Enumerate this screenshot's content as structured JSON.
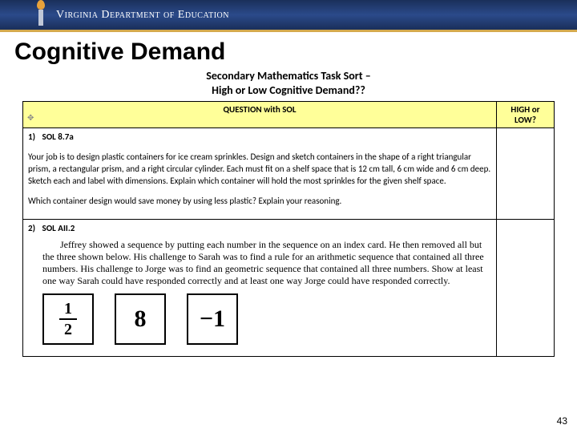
{
  "banner": {
    "org": "Virginia Department of Education",
    "bg_gradient": [
      "#1a2f5a",
      "#2b4a8a",
      "#1a2f5a"
    ],
    "accent_bar": "#d4a94e",
    "text_color": "#ffffff"
  },
  "slide": {
    "title": "Cognitive Demand",
    "page_number": "43"
  },
  "worksheet": {
    "title_line1": "Secondary Mathematics Task Sort –",
    "title_line2": "High or Low Cognitive Demand??",
    "header_left": "QUESTION with SOL",
    "header_right": "HIGH or LOW?",
    "header_bg": "#ffff99",
    "questions": [
      {
        "num": "1)",
        "sol": "SOL 8.7a",
        "body_p1": "Your job is to design plastic containers for ice cream sprinkles.  Design and sketch containers in the shape of a right triangular prism, a rectangular prism, and a right circular cylinder.  Each must fit on a shelf space that is 12 cm tall, 6 cm wide and 6 cm deep.  Sketch each and label with dimensions.  Explain which container will hold the most sprinkles for the given shelf space.",
        "body_p2": "Which container design would save money by using less plastic?  Explain your reasoning."
      },
      {
        "num": "2)",
        "sol": "SOL AII.2",
        "jeffrey": "Jeffrey showed a sequence by putting each number in the sequence on an index card. He then removed all but the three shown below. His challenge to Sarah was to find a rule for an arithmetic sequence that contained all three numbers. His challenge to Jorge was to find an geometric sequence that contained all three numbers. Show at least one way Sarah could have responded correctly and at least one way Jorge could have responded correctly.",
        "cards": {
          "frac_num": "1",
          "frac_den": "2",
          "card2": "8",
          "card3": "−1"
        }
      }
    ]
  }
}
